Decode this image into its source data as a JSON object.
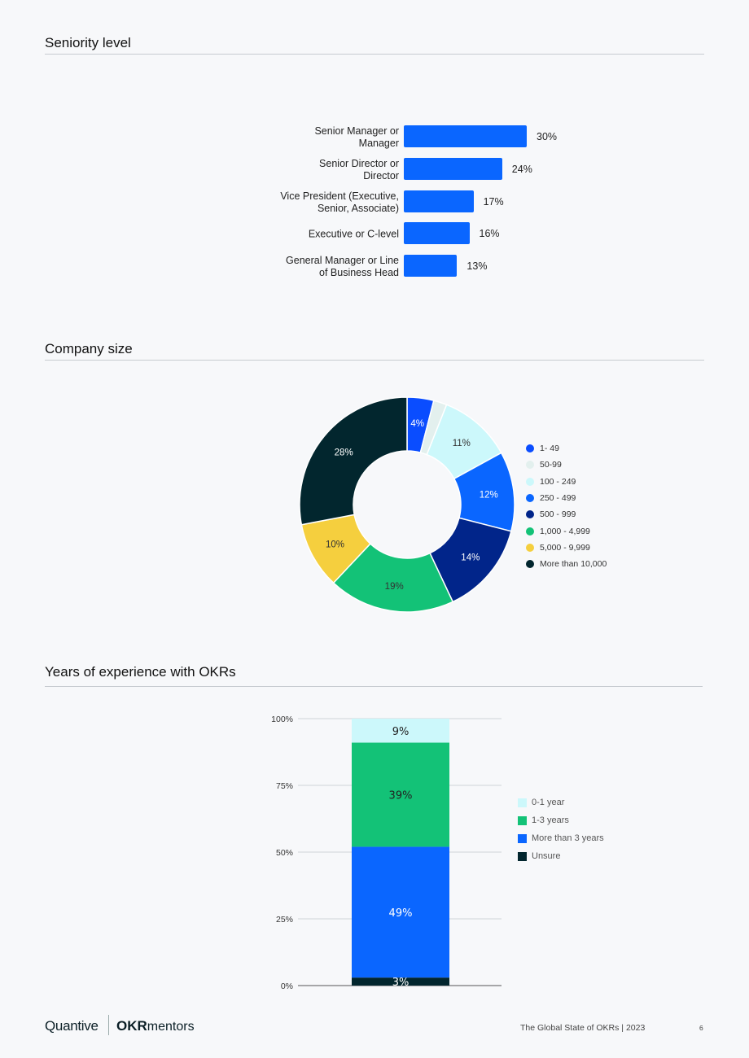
{
  "sections": {
    "seniority_title": "Seniority level",
    "company_title": "Company size",
    "experience_title": "Years of experience with OKRs"
  },
  "chart_data": [
    {
      "type": "bar",
      "orientation": "horizontal",
      "categories": [
        "Senior Manager or Manager",
        "Senior Director or Director",
        "Vice President (Executive, Senior, Associate)",
        "Executive or C-level",
        "General Manager or Line of Business Head"
      ],
      "category_lines": [
        [
          "Senior Manager or",
          "Manager"
        ],
        [
          "Senior Director or",
          "Director"
        ],
        [
          "Vice President (Executive,",
          "Senior, Associate)"
        ],
        [
          "Executive or C-level"
        ],
        [
          "General Manager or Line",
          "of Business Head"
        ]
      ],
      "values": [
        30,
        24,
        17,
        16,
        13
      ],
      "value_labels": [
        "30%",
        "24%",
        "17%",
        "16%",
        "13%"
      ],
      "color": "#0a66ff"
    },
    {
      "type": "pie",
      "donut": true,
      "categories": [
        "1- 49",
        "50-99",
        "100 - 249",
        "250 - 499",
        "500 - 999",
        "1,000 - 4,999",
        "5,000 - 9,999",
        "More than 10,000"
      ],
      "values": [
        4,
        2,
        11,
        12,
        14,
        19,
        10,
        28
      ],
      "value_labels": [
        "4%",
        "",
        "11%",
        "12%",
        "14%",
        "19%",
        "10%",
        "28%"
      ],
      "colors": [
        "#0a4dff",
        "#e3f0ee",
        "#ccf8fb",
        "#0a66ff",
        "#01258a",
        "#13c277",
        "#f5cf3e",
        "#02262e"
      ],
      "label_colors": [
        "#ffffff",
        "#333333",
        "#333333",
        "#ffffff",
        "#ffffff",
        "#333333",
        "#333333",
        "#ffffff"
      ],
      "legend_position": "right"
    },
    {
      "type": "bar",
      "stacked": true,
      "series": [
        {
          "name": "0-1 year",
          "value": 9,
          "label": "9%",
          "color": "#ccf8fb"
        },
        {
          "name": "1-3 years",
          "value": 39,
          "label": "39%",
          "color": "#13c277"
        },
        {
          "name": "More than 3 years",
          "value": 49,
          "label": "49%",
          "color": "#0a66ff"
        },
        {
          "name": "Unsure",
          "value": 3,
          "label": "3%",
          "color": "#02262e"
        }
      ],
      "yticks": [
        "0%",
        "25%",
        "50%",
        "75%",
        "100%"
      ],
      "ylim": [
        0,
        100
      ],
      "grid": true,
      "legend_position": "right"
    }
  ],
  "footer": {
    "brand_quantive": "Quantive",
    "brand_okr": "OKR",
    "brand_mentors": "mentors",
    "report_title": "The Global State of OKRs | 2023",
    "page_number": "6"
  }
}
